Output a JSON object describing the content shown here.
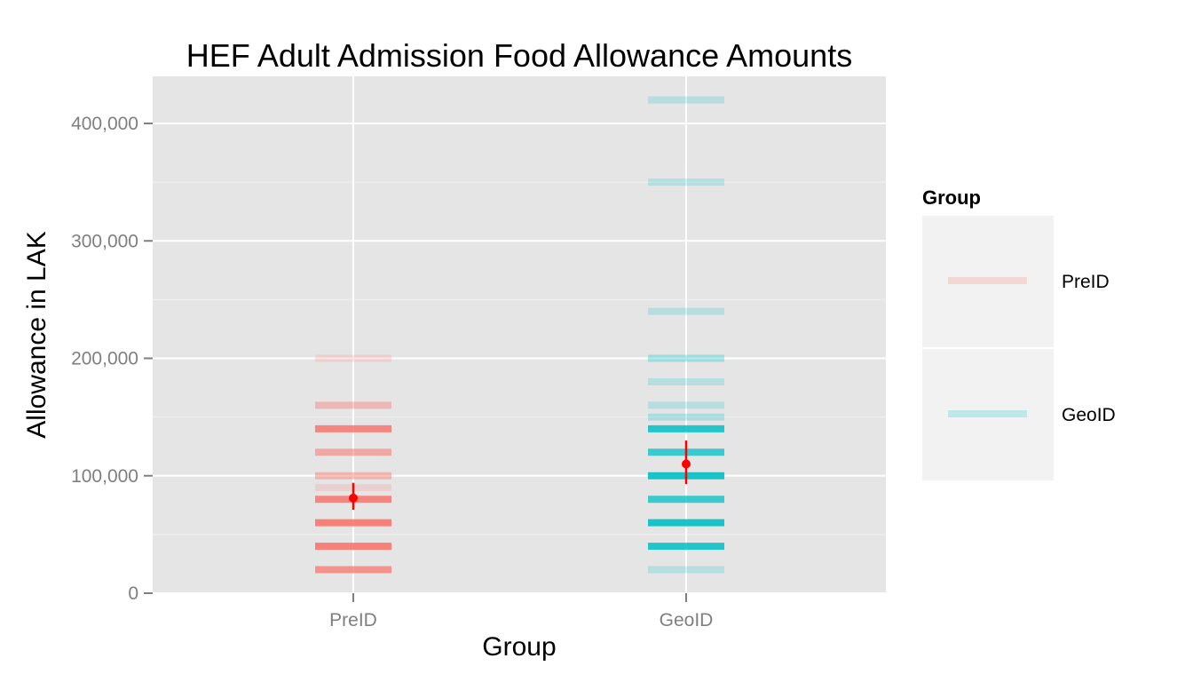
{
  "chart_data": {
    "type": "scatter",
    "title": "HEF Adult Admission Food Allowance Amounts",
    "xlabel": "Group",
    "ylabel": "Allowance in LAK",
    "categories": [
      "PreID",
      "GeoID"
    ],
    "ylim": [
      0,
      440000
    ],
    "yticks": [
      0,
      100000,
      200000,
      300000,
      400000
    ],
    "ytick_labels": [
      "0",
      "100,000",
      "200,000",
      "300,000",
      "400,000"
    ],
    "grid": true,
    "legend_position": "right",
    "legend_title": "Group",
    "series": [
      {
        "name": "PreID",
        "color": "#F8766D",
        "values": [
          {
            "y": 20000,
            "opacity": 0.75
          },
          {
            "y": 40000,
            "opacity": 0.9
          },
          {
            "y": 60000,
            "opacity": 0.9
          },
          {
            "y": 80000,
            "opacity": 0.85
          },
          {
            "y": 90000,
            "opacity": 0.2
          },
          {
            "y": 100000,
            "opacity": 0.45
          },
          {
            "y": 120000,
            "opacity": 0.55
          },
          {
            "y": 140000,
            "opacity": 0.85
          },
          {
            "y": 160000,
            "opacity": 0.4
          },
          {
            "y": 200000,
            "opacity": 0.2
          }
        ],
        "mean": 81000,
        "error": [
          71000,
          94000
        ]
      },
      {
        "name": "GeoID",
        "color": "#00BFC4",
        "values": [
          {
            "y": 20000,
            "opacity": 0.2
          },
          {
            "y": 40000,
            "opacity": 0.85
          },
          {
            "y": 60000,
            "opacity": 0.9
          },
          {
            "y": 80000,
            "opacity": 0.75
          },
          {
            "y": 100000,
            "opacity": 0.9
          },
          {
            "y": 120000,
            "opacity": 0.75
          },
          {
            "y": 140000,
            "opacity": 0.85
          },
          {
            "y": 150000,
            "opacity": 0.25
          },
          {
            "y": 160000,
            "opacity": 0.2
          },
          {
            "y": 180000,
            "opacity": 0.2
          },
          {
            "y": 200000,
            "opacity": 0.3
          },
          {
            "y": 240000,
            "opacity": 0.2
          },
          {
            "y": 350000,
            "opacity": 0.2
          },
          {
            "y": 420000,
            "opacity": 0.2
          }
        ],
        "mean": 110000,
        "error": [
          93000,
          130000
        ]
      }
    ],
    "mean_point_color": "#FF0000"
  }
}
